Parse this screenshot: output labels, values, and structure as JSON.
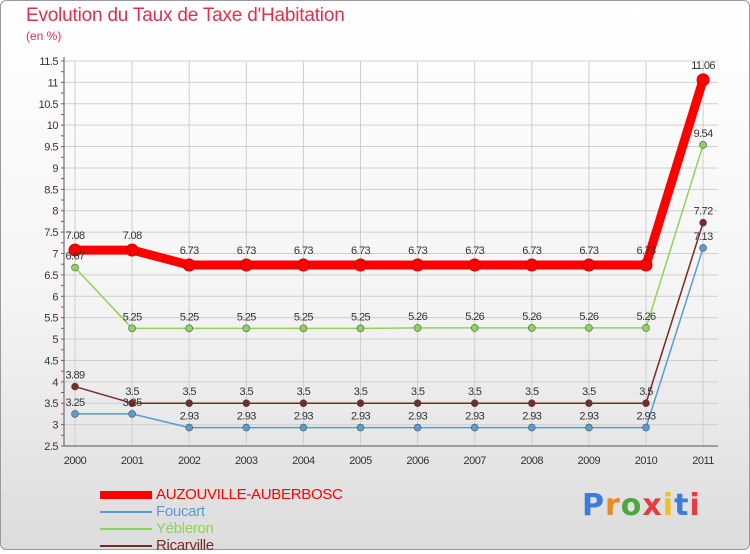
{
  "chart_data": {
    "type": "line",
    "title": "Evolution du Taux de Taxe d'Habitation",
    "subtitle": "(en %)",
    "categories": [
      "2000",
      "2001",
      "2002",
      "2003",
      "2004",
      "2005",
      "2006",
      "2007",
      "2008",
      "2009",
      "2010",
      "2011"
    ],
    "ylim": [
      2.5,
      11.5
    ],
    "yticks": [
      2.5,
      3,
      3.5,
      4,
      4.5,
      5,
      5.5,
      6,
      6.5,
      7,
      7.5,
      8,
      8.5,
      9,
      9.5,
      10,
      10.5,
      11,
      11.5
    ],
    "ytick_labels": [
      "2.5",
      "3",
      "3.5",
      "4",
      "4.5",
      "5",
      "5.5",
      "6",
      "6.5",
      "7",
      "7.5",
      "8",
      "8.5",
      "9",
      "9.5",
      "10",
      "10.5",
      "11",
      "11.5"
    ],
    "grid": true,
    "series": [
      {
        "name": "AUZOUVILLE-AUBERBOSC",
        "color": "#ff0000",
        "highlight": true,
        "values": [
          7.08,
          7.08,
          6.73,
          6.73,
          6.73,
          6.73,
          6.73,
          6.73,
          6.73,
          6.73,
          6.73,
          11.06
        ],
        "labels": [
          "7.08",
          "7.08",
          "6.73",
          "6.73",
          "6.73",
          "6.73",
          "6.73",
          "6.73",
          "6.73",
          "6.73",
          "6.73",
          "11.06"
        ]
      },
      {
        "name": "Foucart",
        "color": "#5b9bd5",
        "highlight": false,
        "values": [
          3.25,
          3.25,
          2.93,
          2.93,
          2.93,
          2.93,
          2.93,
          2.93,
          2.93,
          2.93,
          2.93,
          7.13
        ],
        "labels": [
          "3.25",
          "3.25",
          "2.93",
          "2.93",
          "2.93",
          "2.93",
          "2.93",
          "2.93",
          "2.93",
          "2.93",
          "2.93",
          "7.13"
        ]
      },
      {
        "name": "Yébleron",
        "color": "#8ed35a",
        "highlight": false,
        "values": [
          6.67,
          5.25,
          5.25,
          5.25,
          5.25,
          5.25,
          5.26,
          5.26,
          5.26,
          5.26,
          5.26,
          9.54
        ],
        "labels": [
          "6.67",
          "5.25",
          "5.25",
          "5.25",
          "5.25",
          "5.25",
          "5.26",
          "5.26",
          "5.26",
          "5.26",
          "5.26",
          "9.54"
        ]
      },
      {
        "name": "Ricarville",
        "color": "#7a2828",
        "highlight": false,
        "values": [
          3.89,
          3.5,
          3.5,
          3.5,
          3.5,
          3.5,
          3.5,
          3.5,
          3.5,
          3.5,
          3.5,
          7.72
        ],
        "labels": [
          "3.89",
          "3.5",
          "3.5",
          "3.5",
          "3.5",
          "3.5",
          "3.5",
          "3.5",
          "3.5",
          "3.5",
          "3.5",
          "7.72"
        ]
      }
    ]
  },
  "legend": {
    "items": [
      {
        "label": "AUZOUVILLE-AUBERBOSC",
        "color": "#ff0000"
      },
      {
        "label": "Foucart",
        "color": "#5b9bd5"
      },
      {
        "label": "Yébleron",
        "color": "#8ed35a"
      },
      {
        "label": "Ricarville",
        "color": "#7a2828"
      }
    ]
  },
  "logo": {
    "letters": [
      "P",
      "r",
      "o",
      "x",
      "i",
      "t",
      "i"
    ],
    "colors": [
      "#3b7dd8",
      "#f08a1c",
      "#4aa83f",
      "#e83b3b",
      "#f0c020",
      "#3b7dd8",
      "#e83b3b"
    ]
  },
  "colors": {
    "title": "#e0304a",
    "axis": "#555555",
    "grid": "#cfcfcf",
    "tick_label": "#333333"
  }
}
